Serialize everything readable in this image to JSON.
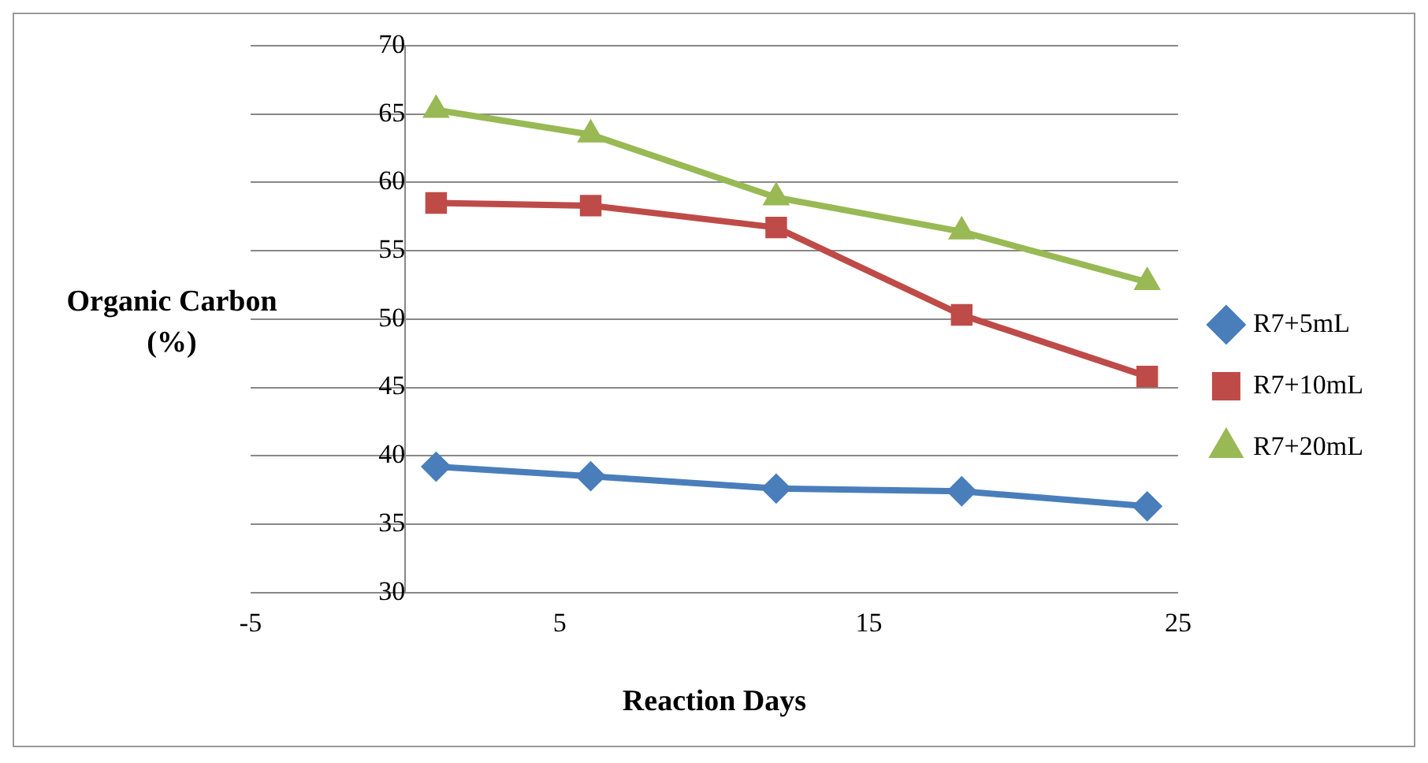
{
  "chart_data": {
    "type": "line",
    "xlabel": "Reaction Days",
    "ylabel": "Organic Carbon (%)",
    "x": [
      1,
      6,
      12,
      18,
      24
    ],
    "xlim": [
      -5,
      25
    ],
    "xticks": [
      -5,
      5,
      15,
      25
    ],
    "ylim": [
      30,
      70
    ],
    "yticks": [
      30,
      35,
      40,
      45,
      50,
      55,
      60,
      65,
      70
    ],
    "grid": "y",
    "legend": "right",
    "line_style": "solid",
    "series": [
      {
        "name": "R7+5mL",
        "color": "#4a7ebb",
        "marker": "diamond",
        "values": [
          39.2,
          38.5,
          37.6,
          37.4,
          36.3
        ]
      },
      {
        "name": "R7+10mL",
        "color": "#be4b48",
        "marker": "square",
        "values": [
          58.5,
          58.3,
          56.7,
          50.3,
          45.8
        ]
      },
      {
        "name": "R7+20mL",
        "color": "#98b954",
        "marker": "triangle",
        "values": [
          65.3,
          63.5,
          58.9,
          56.4,
          52.7
        ]
      }
    ]
  }
}
